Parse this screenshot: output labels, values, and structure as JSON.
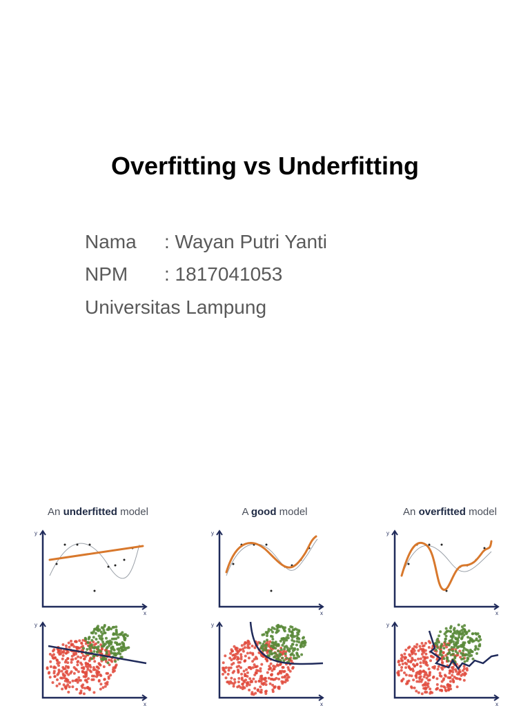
{
  "title": "Overfitting vs Underfitting",
  "details": [
    {
      "label": "Nama",
      "value": ": Wayan Putri Yanti"
    },
    {
      "label": "NPM",
      "value": ": 1817041053"
    }
  ],
  "university": "Universitas Lampung",
  "panels": [
    {
      "prefix": "An",
      "emphasis": "underfitted",
      "suffix": "model"
    },
    {
      "prefix": "A",
      "emphasis": "good",
      "suffix": "model"
    },
    {
      "prefix": "An",
      "emphasis": "overfitted",
      "suffix": "model"
    }
  ],
  "axis_labels": {
    "y": "y",
    "x": "x"
  }
}
